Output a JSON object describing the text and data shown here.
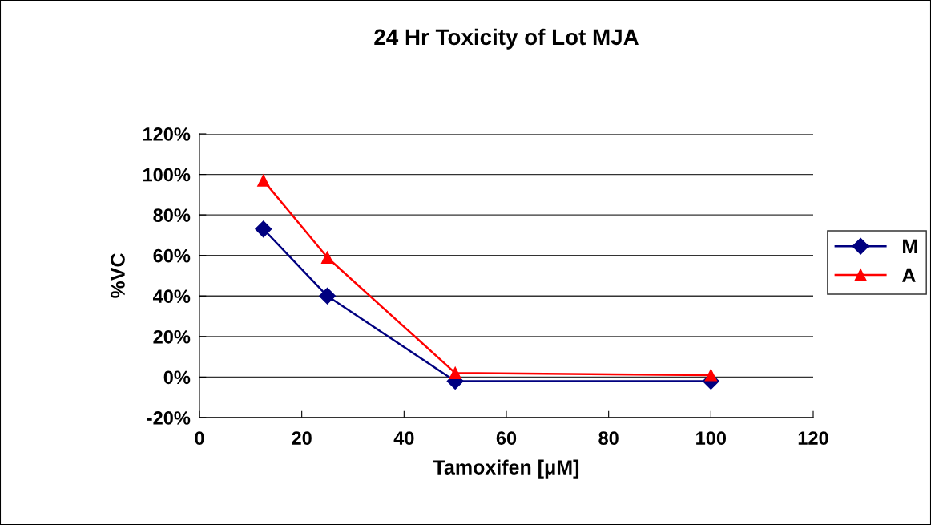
{
  "chart_data": {
    "type": "line",
    "title": "24 Hr Toxicity of Lot MJA",
    "xlabel": "Tamoxifen [μM]",
    "ylabel": "%VC",
    "x": [
      12.5,
      25,
      50,
      100
    ],
    "series": [
      {
        "name": "M",
        "color": "#000080",
        "marker": "diamond",
        "values": [
          73,
          40,
          -2,
          -2
        ]
      },
      {
        "name": "A",
        "color": "#ff0000",
        "marker": "triangle",
        "values": [
          97,
          59,
          2,
          1
        ]
      }
    ],
    "xlim": [
      0,
      120
    ],
    "xticks": [
      0,
      20,
      40,
      60,
      80,
      100,
      120
    ],
    "ylim": [
      -20,
      120
    ],
    "yticks": [
      {
        "value": -20,
        "label": "-20%"
      },
      {
        "value": 0,
        "label": "0%"
      },
      {
        "value": 20,
        "label": "20%"
      },
      {
        "value": 40,
        "label": "40%"
      },
      {
        "value": 60,
        "label": "60%"
      },
      {
        "value": 80,
        "label": "80%"
      },
      {
        "value": 100,
        "label": "100%"
      },
      {
        "value": 120,
        "label": "120%"
      }
    ],
    "grid": "y",
    "legend": "right"
  }
}
